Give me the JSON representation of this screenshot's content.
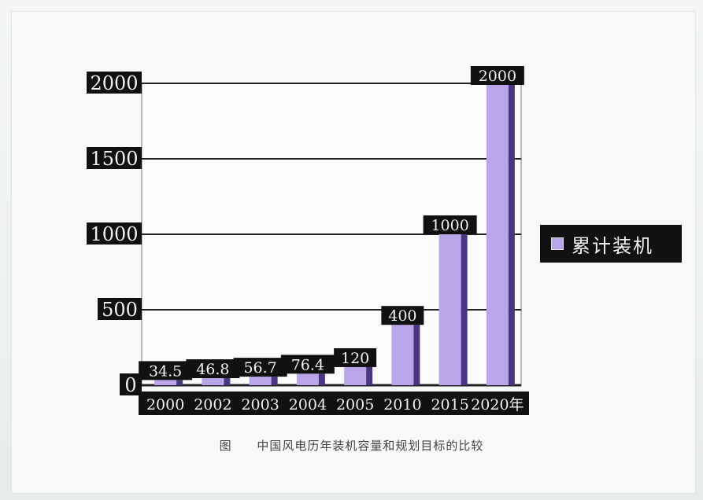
{
  "chart_data": {
    "type": "bar",
    "categories": [
      "2000",
      "2002",
      "2003",
      "2004",
      "2005",
      "2010",
      "2015",
      "2020年"
    ],
    "series": [
      {
        "name": "累计装机",
        "values": [
          34.5,
          46.8,
          56.7,
          76.4,
          120,
          400,
          1000,
          2000
        ],
        "data_labels": [
          "34.5",
          "46.8",
          "56.7",
          "76.4",
          "120",
          "400",
          "1000",
          "2000"
        ]
      }
    ],
    "y_ticks": [
      "0",
      "500",
      "1000",
      "1500",
      "2000"
    ],
    "ylim": [
      0,
      2000
    ],
    "grid": true,
    "legend_position": "right",
    "colors": {
      "bar": "#b9a6e8",
      "bar_side": "#4a3580",
      "label_bg": "#111111",
      "label_text": "#f0f0f0"
    }
  },
  "caption": {
    "prefix": "图",
    "text": "中国风电历年装机容量和规划目标的比较"
  }
}
